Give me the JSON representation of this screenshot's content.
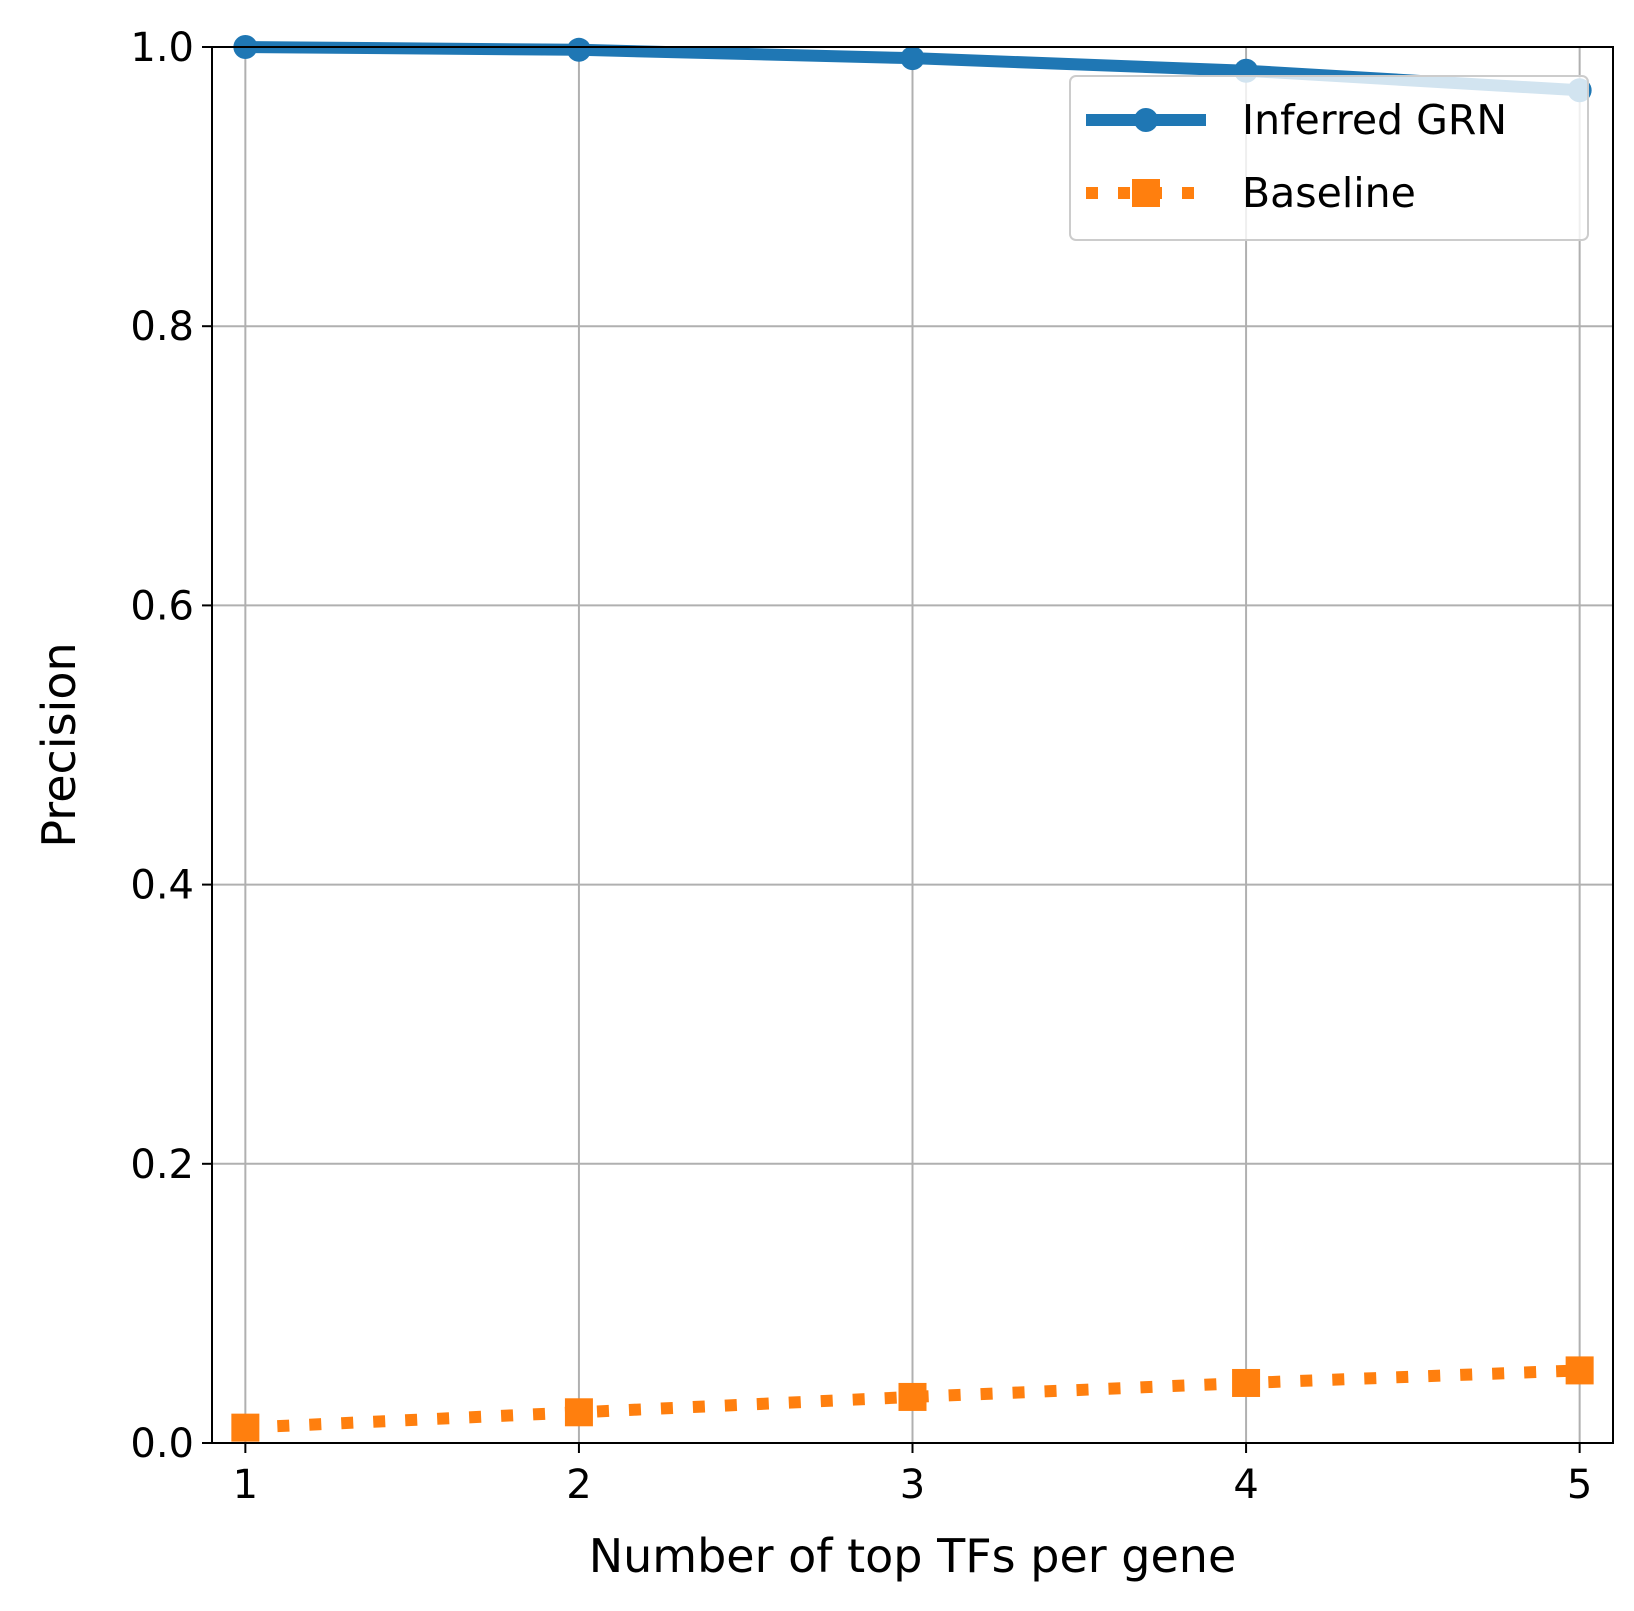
{
  "chart_data": {
    "type": "line",
    "title": "",
    "xlabel": "Number of top TFs per gene",
    "ylabel": "Precision",
    "x": [
      1,
      2,
      3,
      4,
      5
    ],
    "x_tick_labels": [
      "1",
      "2",
      "3",
      "4",
      "5"
    ],
    "y_tick_labels": [
      "0.0",
      "0.2",
      "0.4",
      "0.6",
      "0.8",
      "1.0"
    ],
    "y_ticks": [
      0.0,
      0.2,
      0.4,
      0.6,
      0.8,
      1.0
    ],
    "xlim": [
      0.9,
      5.1
    ],
    "ylim": [
      0.0,
      1.0
    ],
    "grid": true,
    "legend_position": "top-right",
    "series": [
      {
        "name": "Inferred GRN",
        "values": [
          1.0,
          0.998,
          0.992,
          0.983,
          0.969
        ],
        "color": "#1f77b4",
        "linestyle": "solid",
        "marker": "circle"
      },
      {
        "name": "Baseline",
        "values": [
          0.011,
          0.022,
          0.033,
          0.043,
          0.052
        ],
        "color": "#ff7f0e",
        "linestyle": "dotted",
        "marker": "square"
      }
    ]
  }
}
